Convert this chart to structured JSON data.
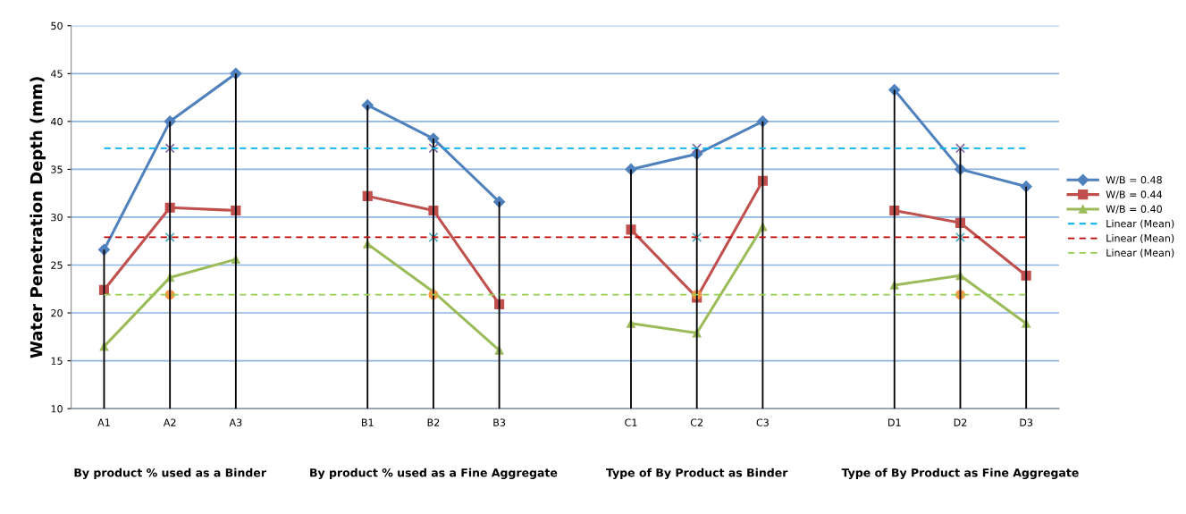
{
  "chart_data": {
    "type": "line",
    "ylabel": "Water Penetration Depth (mm)",
    "categories": [
      "A1",
      "A2",
      "A3",
      null,
      "B1",
      "B2",
      "B3",
      null,
      "C1",
      "C2",
      "C3",
      null,
      "D1",
      "D2",
      "D3"
    ],
    "series": [
      {
        "type": "bar",
        "color": "#000000",
        "values": [
          26.6,
          40,
          45,
          null,
          41.7,
          38.2,
          31.6,
          null,
          35,
          37.2,
          40,
          null,
          43.3,
          37.2,
          33.2
        ]
      },
      {
        "name": "W/B = 0.48",
        "color": "#4f81bd",
        "marker": "diamond",
        "values": [
          26.6,
          40,
          45,
          null,
          41.7,
          38.2,
          31.6,
          null,
          35,
          36.6,
          40,
          null,
          43.3,
          35,
          33.2
        ]
      },
      {
        "name": "W/B = 0.44",
        "color": "#c0504d",
        "marker": "square",
        "values": [
          22.4,
          31,
          30.7,
          null,
          32.2,
          30.7,
          20.9,
          null,
          28.7,
          21.6,
          33.8,
          null,
          30.7,
          29.4,
          23.9
        ]
      },
      {
        "name": "W/B = 0.40",
        "color": "#9bbb59",
        "marker": "triangle",
        "values": [
          16.5,
          23.7,
          25.6,
          null,
          27.2,
          22.2,
          16.1,
          null,
          18.9,
          17.9,
          29,
          null,
          22.9,
          23.9,
          18.9
        ]
      },
      {
        "type": "scatter",
        "color": "#8064a2",
        "marker": "cross",
        "values": [
          null,
          37.2,
          null,
          null,
          null,
          37.2,
          null,
          null,
          null,
          37.2,
          null,
          null,
          null,
          37.2,
          null
        ]
      },
      {
        "type": "scatter",
        "color": "#4bacc6",
        "marker": "cross",
        "values": [
          null,
          27.9,
          null,
          null,
          null,
          27.9,
          null,
          null,
          null,
          27.9,
          null,
          null,
          null,
          27.9,
          null
        ]
      },
      {
        "type": "scatter",
        "color": "#f79646",
        "marker": "circle",
        "values": [
          null,
          21.9,
          null,
          null,
          null,
          21.9,
          null,
          null,
          null,
          21.9,
          null,
          null,
          null,
          21.9,
          null
        ]
      },
      {
        "name": "Linear (Mean)",
        "color": "#00b0f0",
        "line_style": "dashed",
        "marker": "none",
        "values": [
          37.2,
          37.2,
          37.2,
          37.2,
          37.2,
          37.2,
          37.2,
          37.2,
          37.2,
          37.2,
          37.2,
          37.2,
          37.2,
          37.2,
          37.2
        ]
      },
      {
        "name": "Linear (Mean)",
        "color": "#c00000",
        "line_style": "dashed",
        "marker": "none",
        "values": [
          27.9,
          27.9,
          27.9,
          27.9,
          27.9,
          27.9,
          27.9,
          27.9,
          27.9,
          27.9,
          27.9,
          27.9,
          27.9,
          27.9,
          27.9
        ]
      },
      {
        "name": "Linear (Mean)",
        "color": "#92d050",
        "line_style": "dashed",
        "marker": "none",
        "values": [
          21.9,
          21.9,
          21.9,
          21.9,
          21.9,
          21.9,
          21.9,
          21.9,
          21.9,
          21.9,
          21.9,
          21.9,
          21.9,
          21.9,
          21.9
        ]
      }
    ],
    "ylim": [
      10,
      50
    ],
    "yticks": [
      10,
      15,
      20,
      25,
      30,
      35,
      40,
      45,
      50
    ],
    "grid": "y",
    "legend": "right",
    "annotations": [
      "By product % used as a Binder",
      "By product % used as a Fine Aggregate",
      "Type of By Product as Binder",
      "Type of By Product as Fine Aggregate"
    ]
  }
}
